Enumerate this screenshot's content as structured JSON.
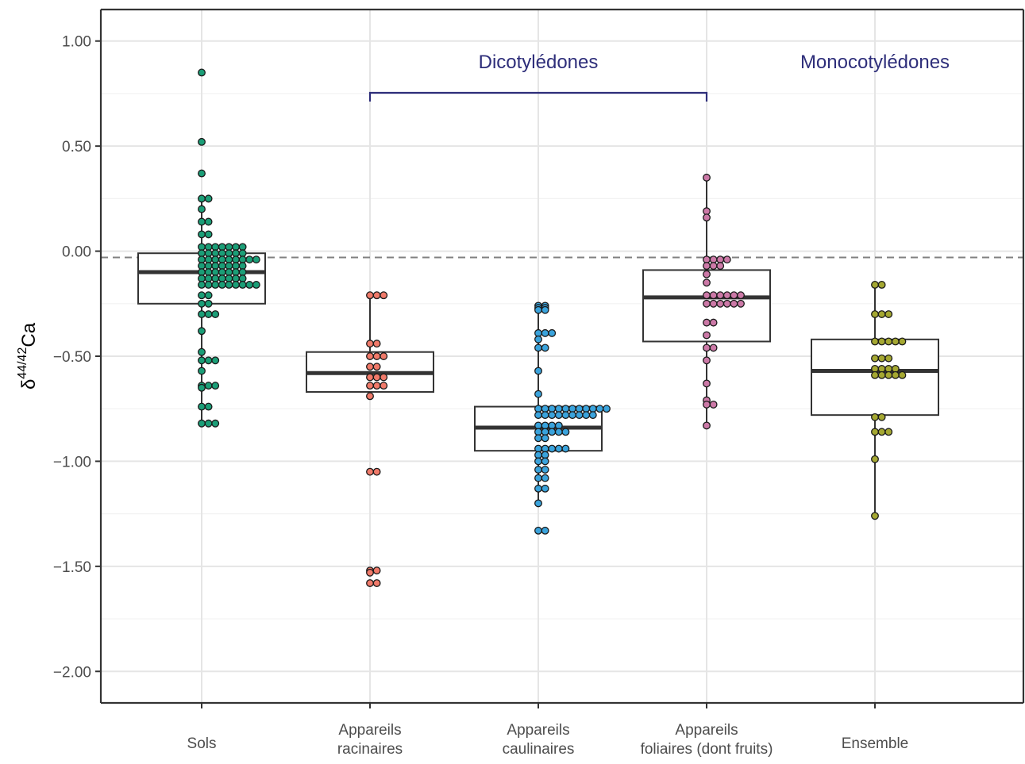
{
  "chart_data": {
    "type": "boxplot",
    "ylabel": {
      "prefix": "δ",
      "superscript": "44/42",
      "suffix": "Ca"
    },
    "ylim": [
      -2.15,
      1.15
    ],
    "yticks": [
      1.0,
      0.5,
      0.0,
      -0.5,
      -1.0,
      -1.5,
      -2.0
    ],
    "ytick_labels": [
      "1.00",
      "0.50",
      "0.00",
      "−0.50",
      "−1.00",
      "−1.50",
      "−2.00"
    ],
    "grid": true,
    "reference_line": {
      "y": -0.03,
      "style": "dashed"
    },
    "groups": [
      {
        "label": "Dicotylédones",
        "from": 1,
        "to": 3,
        "color": "#2e2e7a"
      },
      {
        "label": "Monocotylédones",
        "from": 4,
        "to": 4,
        "color": "#2e2e7a"
      }
    ],
    "categories": [
      {
        "lines": [
          "Sols"
        ],
        "color": "#1b9e77",
        "box": {
          "q1": -0.25,
          "median": -0.1,
          "q3": -0.01,
          "whisker_low": -0.82,
          "whisker_high": 0.25
        },
        "points": [
          0.85,
          0.52,
          0.37,
          0.25,
          0.25,
          0.2,
          0.14,
          0.14,
          0.08,
          0.08,
          0.02,
          0.02,
          0.02,
          0.02,
          0.02,
          0.02,
          0.02,
          -0.01,
          -0.01,
          -0.01,
          -0.01,
          -0.01,
          -0.01,
          -0.01,
          -0.04,
          -0.04,
          -0.04,
          -0.04,
          -0.04,
          -0.04,
          -0.04,
          -0.04,
          -0.04,
          -0.07,
          -0.07,
          -0.07,
          -0.07,
          -0.07,
          -0.07,
          -0.07,
          -0.1,
          -0.1,
          -0.1,
          -0.1,
          -0.1,
          -0.1,
          -0.1,
          -0.13,
          -0.13,
          -0.13,
          -0.13,
          -0.13,
          -0.13,
          -0.13,
          -0.16,
          -0.16,
          -0.16,
          -0.16,
          -0.16,
          -0.16,
          -0.16,
          -0.16,
          -0.16,
          -0.21,
          -0.21,
          -0.25,
          -0.25,
          -0.3,
          -0.3,
          -0.3,
          -0.38,
          -0.48,
          -0.52,
          -0.52,
          -0.52,
          -0.57,
          -0.64,
          -0.64,
          -0.64,
          -0.65,
          -0.74,
          -0.74,
          -0.82,
          -0.82,
          -0.82
        ]
      },
      {
        "lines": [
          "Appareils",
          "racinaires"
        ],
        "color": "#f07a6a",
        "box": {
          "q1": -0.67,
          "median": -0.58,
          "q3": -0.48,
          "whisker_low": -0.69,
          "whisker_high": -0.21
        },
        "points": [
          -0.21,
          -0.21,
          -0.21,
          -0.44,
          -0.44,
          -0.5,
          -0.5,
          -0.5,
          -0.55,
          -0.55,
          -0.6,
          -0.6,
          -0.6,
          -0.64,
          -0.64,
          -0.64,
          -0.69,
          -1.05,
          -1.05,
          -1.52,
          -1.52,
          -1.53,
          -1.58,
          -1.58
        ]
      },
      {
        "lines": [
          "Appareils",
          "caulinaires"
        ],
        "color": "#3aa3dc",
        "box": {
          "q1": -0.95,
          "median": -0.84,
          "q3": -0.74,
          "whisker_low": -1.2,
          "whisker_high": -0.26
        },
        "points": [
          -0.26,
          -0.26,
          -0.27,
          -0.27,
          -0.28,
          -0.28,
          -0.39,
          -0.39,
          -0.39,
          -0.42,
          -0.46,
          -0.46,
          -0.57,
          -0.68,
          -0.75,
          -0.75,
          -0.75,
          -0.75,
          -0.75,
          -0.75,
          -0.75,
          -0.75,
          -0.75,
          -0.75,
          -0.75,
          -0.78,
          -0.78,
          -0.78,
          -0.78,
          -0.78,
          -0.78,
          -0.78,
          -0.78,
          -0.78,
          -0.83,
          -0.83,
          -0.83,
          -0.83,
          -0.86,
          -0.86,
          -0.86,
          -0.86,
          -0.86,
          -0.89,
          -0.89,
          -0.94,
          -0.94,
          -0.94,
          -0.94,
          -0.94,
          -0.97,
          -0.97,
          -1.0,
          -1.0,
          -1.04,
          -1.04,
          -1.08,
          -1.08,
          -1.13,
          -1.13,
          -1.2,
          -1.33,
          -1.33
        ]
      },
      {
        "lines": [
          "Appareils",
          "foliaires (dont fruits)"
        ],
        "color": "#cc79a7",
        "box": {
          "q1": -0.43,
          "median": -0.22,
          "q3": -0.09,
          "whisker_low": -0.83,
          "whisker_high": 0.35
        },
        "points": [
          0.35,
          0.19,
          0.16,
          -0.04,
          -0.04,
          -0.04,
          -0.04,
          -0.07,
          -0.07,
          -0.07,
          -0.11,
          -0.15,
          -0.21,
          -0.21,
          -0.21,
          -0.21,
          -0.21,
          -0.21,
          -0.25,
          -0.25,
          -0.25,
          -0.25,
          -0.25,
          -0.25,
          -0.34,
          -0.34,
          -0.4,
          -0.46,
          -0.46,
          -0.52,
          -0.63,
          -0.71,
          -0.73,
          -0.73,
          -0.83
        ]
      },
      {
        "lines": [
          "Ensemble"
        ],
        "color": "#a5a832",
        "box": {
          "q1": -0.78,
          "median": -0.57,
          "q3": -0.42,
          "whisker_low": -1.26,
          "whisker_high": -0.16
        },
        "points": [
          -0.16,
          -0.16,
          -0.3,
          -0.3,
          -0.3,
          -0.43,
          -0.43,
          -0.43,
          -0.43,
          -0.43,
          -0.51,
          -0.51,
          -0.51,
          -0.56,
          -0.56,
          -0.56,
          -0.56,
          -0.59,
          -0.59,
          -0.59,
          -0.59,
          -0.59,
          -0.79,
          -0.79,
          -0.86,
          -0.86,
          -0.86,
          -0.99,
          -1.26
        ]
      }
    ]
  }
}
